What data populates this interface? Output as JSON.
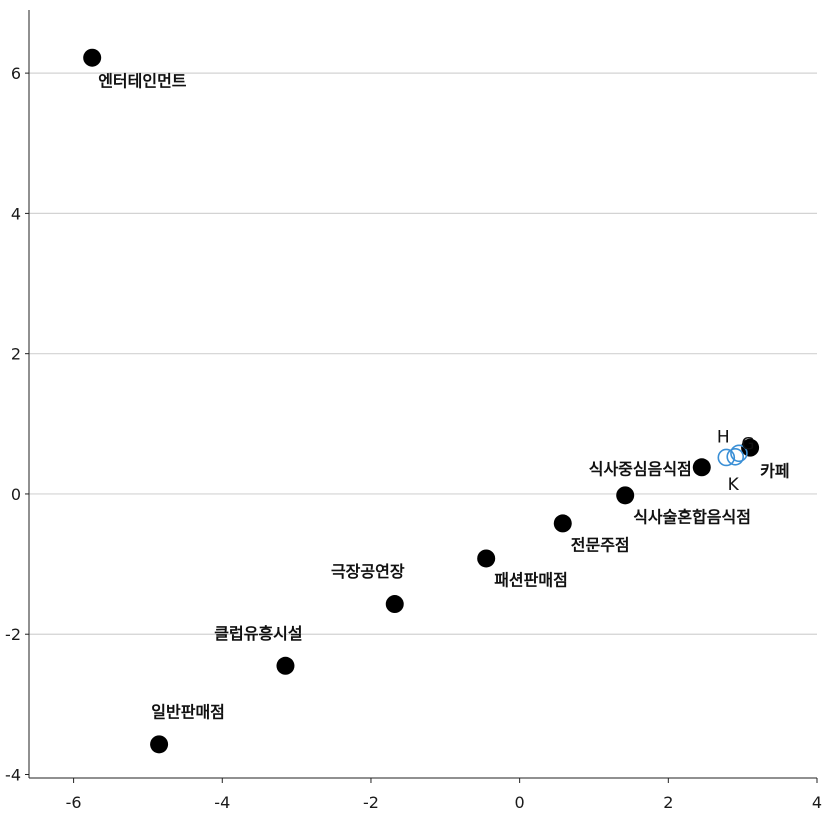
{
  "chart_data": {
    "type": "scatter",
    "xlim": [
      -6.6,
      4
    ],
    "ylim": [
      -4.05,
      6.9
    ],
    "x_ticks": [
      "-6",
      "-4",
      "-2",
      "0",
      "2",
      "4"
    ],
    "y_ticks": [
      "-4",
      "-2",
      "0",
      "2",
      "4",
      "6"
    ],
    "x_tick_values": [
      -6,
      -4,
      -2,
      0,
      2,
      4
    ],
    "y_tick_values": [
      -4,
      -2,
      0,
      2,
      4,
      6
    ],
    "grid": "horizontal",
    "colors": {
      "filled": "#000000",
      "open": "#3a8fd6",
      "grid": "#d3d3d3",
      "axis": "#222222"
    },
    "series": [
      {
        "marker": "filled-circle",
        "points": [
          {
            "label": "엔터테인먼트",
            "x": -5.75,
            "y": 6.22
          },
          {
            "label": "식사중심음식점",
            "x": 2.45,
            "y": 0.38
          },
          {
            "label": "카페",
            "x": 3.1,
            "y": 0.66
          },
          {
            "label": "식사술혼합음식점",
            "x": 1.42,
            "y": -0.02
          },
          {
            "label": "전문주점",
            "x": 0.58,
            "y": -0.42
          },
          {
            "label": "패션판매점",
            "x": -0.45,
            "y": -0.92
          },
          {
            "label": "극장공연장",
            "x": -1.68,
            "y": -1.57
          },
          {
            "label": "클럽유흥시설",
            "x": -3.15,
            "y": -2.45
          },
          {
            "label": "일반판매점",
            "x": -4.85,
            "y": -3.57
          }
        ]
      },
      {
        "marker": "open-circle",
        "points": [
          {
            "label": "H",
            "x": 2.78,
            "y": 0.52
          },
          {
            "label": "G",
            "x": 2.95,
            "y": 0.58
          },
          {
            "label": "K",
            "x": 2.9,
            "y": 0.53
          }
        ]
      }
    ]
  }
}
